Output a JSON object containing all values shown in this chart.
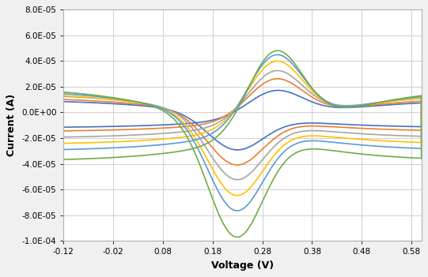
{
  "xlabel": "Voltage (V)",
  "ylabel": "Current (A)",
  "xlim": [
    -0.12,
    0.6
  ],
  "ylim": [
    -0.0001,
    8e-05
  ],
  "xticks": [
    -0.12,
    -0.02,
    0.08,
    0.18,
    0.28,
    0.38,
    0.48,
    0.58
  ],
  "yticks": [
    -0.0001,
    -8e-05,
    -6e-05,
    -4e-05,
    -2e-05,
    0.0,
    2e-05,
    4e-05,
    6e-05,
    8e-05
  ],
  "background_color": "#f0f0f0",
  "plot_bg": "#ffffff",
  "curves": [
    {
      "color": "#4472c4",
      "ipa": 2e-05,
      "ipc": -2.7e-05,
      "istart": -1.2e-05,
      "iend": 1e-05
    },
    {
      "color": "#ed7d31",
      "ipa": 3e-05,
      "ipc": -3.8e-05,
      "istart": -1.5e-05,
      "iend": 1.2e-05
    },
    {
      "color": "#a5a5a5",
      "ipa": 3.8e-05,
      "ipc": -4.8e-05,
      "istart": -2e-05,
      "iend": 1.5e-05
    },
    {
      "color": "#ffc000",
      "ipa": 4.8e-05,
      "ipc": -5.8e-05,
      "istart": -2.5e-05,
      "iend": 1.6e-05
    },
    {
      "color": "#5b9bd5",
      "ipa": 5.5e-05,
      "ipc": -6.8e-05,
      "istart": -3e-05,
      "iend": 1.8e-05
    },
    {
      "color": "#70ad47",
      "ipa": 6.2e-05,
      "ipc": -8.5e-05,
      "istart": -3.8e-05,
      "iend": 2e-05
    }
  ]
}
